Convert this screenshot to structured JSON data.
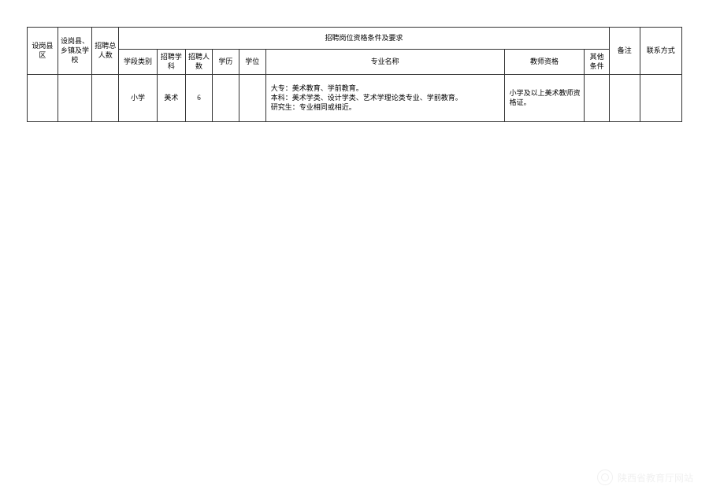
{
  "table": {
    "columns": {
      "c1": "设岗县区",
      "c2": "设岗县、乡镇及学校",
      "c3": "招聘总人数",
      "c4_group": "招聘岗位资格条件及要求",
      "c4a": "学段类别",
      "c4b": "招聘学科",
      "c4c": "招聘人数",
      "c4d": "学历",
      "c4e": "学位",
      "c4f": "专业名称",
      "c4g": "教师资格",
      "c4h": "其他条件",
      "c5": "备注",
      "c6": "联系方式"
    },
    "row": {
      "c1": "",
      "c2": "",
      "c3": "",
      "c4a": "小学",
      "c4b": "美术",
      "c4c": "6",
      "c4d": "",
      "c4e": "",
      "c4f": "大专：美术教育、学前教育。\n本科：美术学类、设计学类、艺术学理论类专业、学前教育。\n研究生：专业相同或相近。",
      "c4g": "小学及以上美术教师资格证。",
      "c4h": "",
      "c5": "",
      "c6": ""
    },
    "widths": {
      "c1": 32,
      "c2": 36,
      "c3": 28,
      "c4a": 40,
      "c4b": 30,
      "c4c": 28,
      "c4d": 28,
      "c4e": 28,
      "c4f": 250,
      "c4g": 84,
      "c4h": 26,
      "c5": 32,
      "c6": 44
    },
    "border_color": "#333333",
    "background_color": "#ffffff",
    "font_size": 9
  },
  "watermark": {
    "text": "陕西省教育厅网站"
  }
}
